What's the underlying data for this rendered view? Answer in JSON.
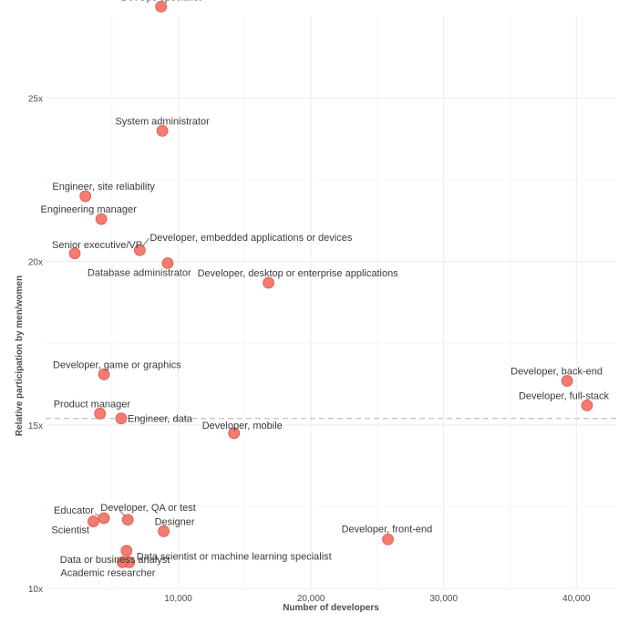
{
  "chart_data": {
    "type": "scatter",
    "xlabel": "Number of developers",
    "ylabel": "Relative participation by men/women",
    "xlim": [
      0,
      43000
    ],
    "ylim": [
      10,
      27.5
    ],
    "x_ticks": [
      10000,
      20000,
      30000,
      40000
    ],
    "x_tick_labels": [
      "10,000",
      "20,000",
      "30,000",
      "40,000"
    ],
    "y_ticks": [
      10,
      15,
      20,
      25
    ],
    "y_tick_labels": [
      "10x",
      "15x",
      "20x",
      "25x"
    ],
    "grid": true,
    "reference_line": {
      "y": 15.2,
      "style": "dashed"
    },
    "point_color": "#ee6a5f",
    "points": [
      {
        "label": "DevOps specialist",
        "x": 8700,
        "y": 27.8
      },
      {
        "label": "System administrator",
        "x": 8800,
        "y": 24.0
      },
      {
        "label": "Engineer, site reliability",
        "x": 3000,
        "y": 22.0
      },
      {
        "label": "Engineering manager",
        "x": 4200,
        "y": 21.3
      },
      {
        "label": "Senior executive/VP",
        "x": 2200,
        "y": 20.25
      },
      {
        "label": "Developer, embedded applications or devices",
        "x": 7100,
        "y": 20.35
      },
      {
        "label": "Database administrator",
        "x": 9200,
        "y": 19.95
      },
      {
        "label": "Developer, desktop or enterprise applications",
        "x": 16800,
        "y": 19.35
      },
      {
        "label": "Developer, game or graphics",
        "x": 4400,
        "y": 16.55
      },
      {
        "label": "Developer, back-end",
        "x": 39300,
        "y": 16.35
      },
      {
        "label": "Developer, full-stack",
        "x": 40800,
        "y": 15.6
      },
      {
        "label": "Product manager",
        "x": 4100,
        "y": 15.35
      },
      {
        "label": "Engineer, data",
        "x": 5700,
        "y": 15.2
      },
      {
        "label": "Developer, mobile",
        "x": 14200,
        "y": 14.75
      },
      {
        "label": "Developer, QA or test",
        "x": 6200,
        "y": 12.1
      },
      {
        "label": "Educator",
        "x": 4400,
        "y": 12.15
      },
      {
        "label": "Scientist",
        "x": 3600,
        "y": 12.05
      },
      {
        "label": "Designer",
        "x": 8900,
        "y": 11.75
      },
      {
        "label": "Developer, front-end",
        "x": 25800,
        "y": 11.5
      },
      {
        "label": "Data or business analyst",
        "x": 6100,
        "y": 11.15
      },
      {
        "label": "Data scientist or machine learning specialist",
        "x": 6300,
        "y": 10.8
      },
      {
        "label": "Academic researcher",
        "x": 5800,
        "y": 10.8
      }
    ]
  }
}
